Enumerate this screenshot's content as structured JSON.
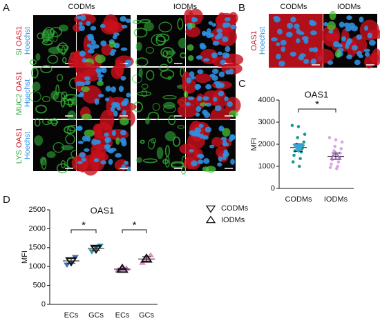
{
  "panels": {
    "a": {
      "label": "A",
      "columns": [
        "CODMs",
        "IODMs"
      ],
      "rows": [
        {
          "marker": "SI",
          "target": "OAS1",
          "stain": "Hoechst"
        },
        {
          "marker": "MUC2",
          "target": "OAS1",
          "stain": "Hoechst"
        },
        {
          "marker": "LYS",
          "target": "OAS1",
          "stain": "Hoechst"
        }
      ]
    },
    "b": {
      "label": "B",
      "columns": [
        "CODMs",
        "IODMs"
      ],
      "target": "OAS1",
      "stain": "Hoechst"
    },
    "c": {
      "label": "C"
    },
    "d": {
      "label": "D"
    }
  },
  "chart_data": [
    {
      "type": "scatter",
      "title": "OAS1",
      "ylabel": "MFI",
      "categories": [
        "CODMs",
        "IODMs"
      ],
      "series": [
        {
          "name": "CODMs",
          "color": "#1a9a8a",
          "mean_color": "#3aa6d8",
          "marker": "triangle-down",
          "values": [
            2850,
            2800,
            2450,
            2300,
            2100,
            2000,
            1950,
            1900,
            1800,
            1700,
            1650,
            1500,
            1350,
            1200,
            1000
          ]
        },
        {
          "name": "IODMs",
          "color": "#d9a6e6",
          "mean_color": "#a070c0",
          "marker": "triangle-up",
          "values": [
            2300,
            2200,
            2100,
            1900,
            1800,
            1700,
            1600,
            1500,
            1400,
            1300,
            1200,
            1100,
            1000,
            950,
            900
          ]
        }
      ],
      "means": [
        1850,
        1450
      ],
      "sems": [
        170,
        150
      ],
      "ylim": [
        0,
        4000
      ],
      "yticks": [
        0,
        1000,
        2000,
        3000,
        4000
      ],
      "annotations": [
        "*"
      ]
    },
    {
      "type": "scatter",
      "title": "OAS1",
      "ylabel": "MFI",
      "categories": [
        "ECs",
        "GCs",
        "ECs",
        "GCs"
      ],
      "series": [
        {
          "name": "CODMs",
          "marker": "triangle-down",
          "colors": [
            "#3f6fb5",
            "#2a9bb5"
          ],
          "values": [
            [
              1050,
              1100,
              1250
            ],
            [
              1400,
              1500,
              1550
            ]
          ],
          "means": [
            1150,
            1480
          ],
          "sems": [
            60,
            50
          ]
        },
        {
          "name": "IODMs",
          "marker": "triangle-up",
          "colors": [
            "#d070c0",
            "#e090c0"
          ],
          "values": [
            [
              900,
              950,
              950
            ],
            [
              1100,
              1200,
              1300
            ]
          ],
          "means": [
            930,
            1200
          ],
          "sems": [
            20,
            60
          ]
        }
      ],
      "ylim": [
        0,
        2500
      ],
      "yticks": [
        0,
        500,
        1000,
        1500,
        2000,
        2500
      ],
      "annotations": [
        "*",
        "*"
      ]
    }
  ]
}
